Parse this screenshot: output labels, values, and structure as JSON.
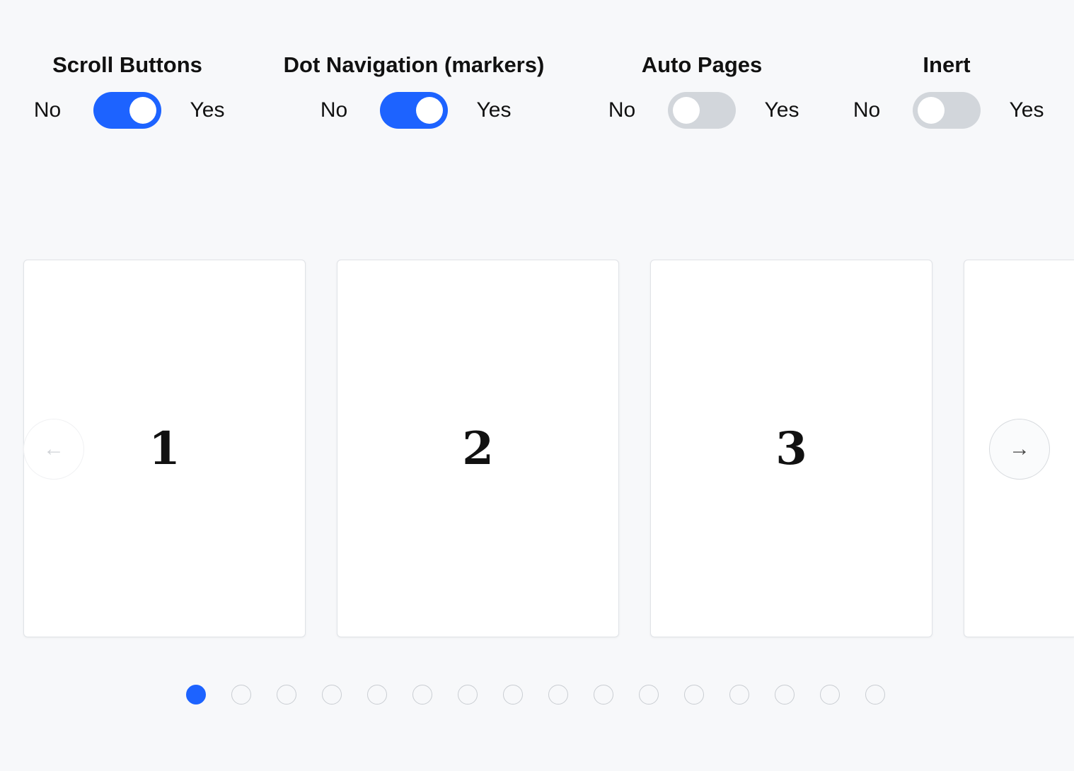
{
  "toggles": [
    {
      "title": "Scroll Buttons",
      "no": "No",
      "yes": "Yes",
      "on": true
    },
    {
      "title": "Dot Navigation (markers)",
      "no": "No",
      "yes": "Yes",
      "on": true
    },
    {
      "title": "Auto Pages",
      "no": "No",
      "yes": "Yes",
      "on": false
    },
    {
      "title": "Inert",
      "no": "No",
      "yes": "Yes",
      "on": false
    }
  ],
  "slides": [
    "1",
    "2",
    "3",
    ""
  ],
  "scroll_prev_icon": "arrow-left-icon",
  "scroll_next_icon": "arrow-right-icon",
  "dots": {
    "count": 16,
    "active_index": 0
  },
  "colors": {
    "accent": "#1d63ff",
    "toggle_off": "#d2d6db",
    "background": "#f7f8fa"
  }
}
